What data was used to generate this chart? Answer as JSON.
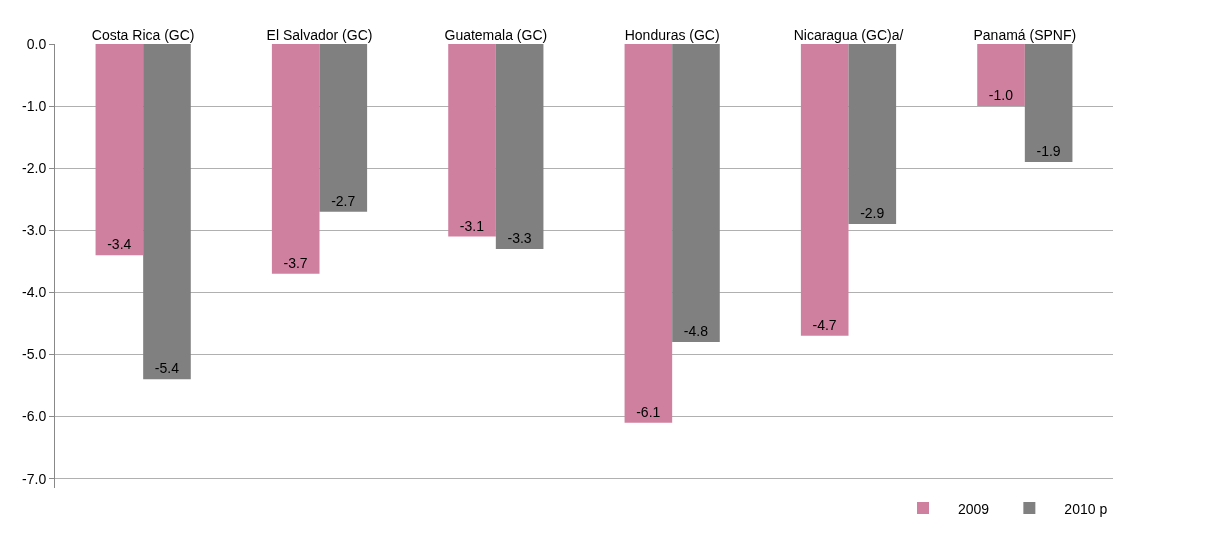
{
  "chart_data": {
    "type": "bar",
    "categories": [
      "Costa Rica (GC)",
      "El Salvador (GC)",
      "Guatemala (GC)",
      "Honduras (GC)",
      "Nicaragua (GC)a/",
      "Panamá (SPNF)"
    ],
    "series": [
      {
        "name": "2009",
        "color": "#d0809f",
        "values": [
          -3.4,
          -3.7,
          -3.1,
          -6.1,
          -4.7,
          -1.0
        ],
        "value_labels": [
          "-3.4",
          "-3.7",
          "-3.1",
          "-6.1",
          "-4.7",
          "-1.0"
        ]
      },
      {
        "name": "2010 p",
        "color": "#808080",
        "values": [
          -5.4,
          -2.7,
          -3.3,
          -4.8,
          -2.9,
          -1.9
        ],
        "value_labels": [
          "-5.4",
          "-2.7",
          "-3.3",
          "-4.8",
          "-2.9",
          "-1.9"
        ]
      }
    ],
    "ylim": [
      -7.15,
      0
    ],
    "yticks": [
      {
        "value": 0,
        "label": "0.0"
      },
      {
        "value": -1,
        "label": "-1.0"
      },
      {
        "value": -2,
        "label": "-2.0"
      },
      {
        "value": -3,
        "label": "-3.0"
      },
      {
        "value": -4,
        "label": "-4.0"
      },
      {
        "value": -5,
        "label": "-5.0"
      },
      {
        "value": -6,
        "label": "-6.0"
      },
      {
        "value": -7,
        "label": "-7.0"
      }
    ],
    "grid": "y",
    "legend": "bottom right"
  }
}
